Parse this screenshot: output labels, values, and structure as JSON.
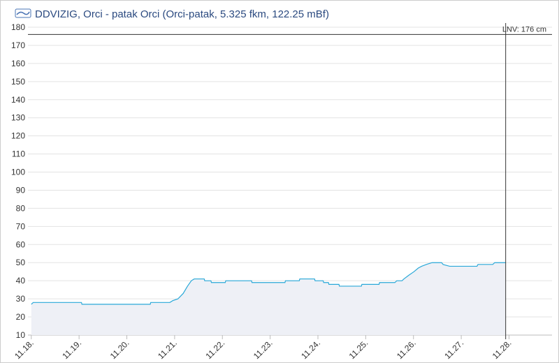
{
  "chart_data": {
    "type": "line",
    "title": "DDVIZIG, Orci - patak Orci (Orci-patak, 5.325 fkm, 122.25 mBf)",
    "x": [
      18.0,
      18.04,
      19.05,
      19.06,
      20.49,
      20.5,
      20.9,
      20.96,
      21.07,
      21.18,
      21.27,
      21.35,
      21.41,
      21.62,
      21.63,
      21.76,
      21.77,
      22.06,
      22.07,
      22.61,
      22.62,
      23.31,
      23.32,
      23.61,
      23.62,
      23.93,
      23.94,
      24.11,
      24.12,
      24.22,
      24.23,
      24.44,
      24.45,
      24.91,
      24.92,
      25.28,
      25.29,
      25.61,
      25.65,
      25.76,
      25.8,
      25.9,
      26.01,
      26.1,
      26.17,
      26.27,
      26.39,
      26.59,
      26.62,
      26.76,
      27.33,
      27.35,
      27.66,
      27.7,
      27.93
    ],
    "series": [
      {
        "color": "#29a8d8",
        "values": [
          27,
          28,
          28,
          27,
          27,
          28,
          28,
          29,
          30,
          33,
          37,
          40,
          41,
          41,
          40,
          40,
          39,
          39,
          40,
          40,
          39,
          39,
          40,
          40,
          41,
          41,
          40,
          40,
          39,
          39,
          38,
          38,
          37,
          37,
          38,
          38,
          39,
          39,
          40,
          40,
          41,
          43,
          45,
          47,
          48,
          49,
          50,
          50,
          49,
          48,
          48,
          49,
          49,
          50,
          50
        ]
      }
    ],
    "xlim": [
      17.93,
      28.9
    ],
    "xticks": [
      {
        "value": 18,
        "label": "11.18."
      },
      {
        "value": 19,
        "label": "11.19."
      },
      {
        "value": 20,
        "label": "11.20."
      },
      {
        "value": 21,
        "label": "11.21."
      },
      {
        "value": 22,
        "label": "11.22."
      },
      {
        "value": 23,
        "label": "11.23."
      },
      {
        "value": 24,
        "label": "11.24."
      },
      {
        "value": 25,
        "label": "11.25."
      },
      {
        "value": 26,
        "label": "11.26."
      },
      {
        "value": 27,
        "label": "11.27."
      },
      {
        "value": 28,
        "label": "11.28."
      }
    ],
    "ylim": [
      10,
      180
    ],
    "yticks": [
      10,
      20,
      30,
      40,
      50,
      60,
      70,
      80,
      90,
      100,
      110,
      120,
      130,
      140,
      150,
      160,
      170,
      180
    ],
    "grid": true,
    "reference_line": {
      "value": 176,
      "label": "LNV: 176 cm"
    },
    "now_line": 27.93
  }
}
